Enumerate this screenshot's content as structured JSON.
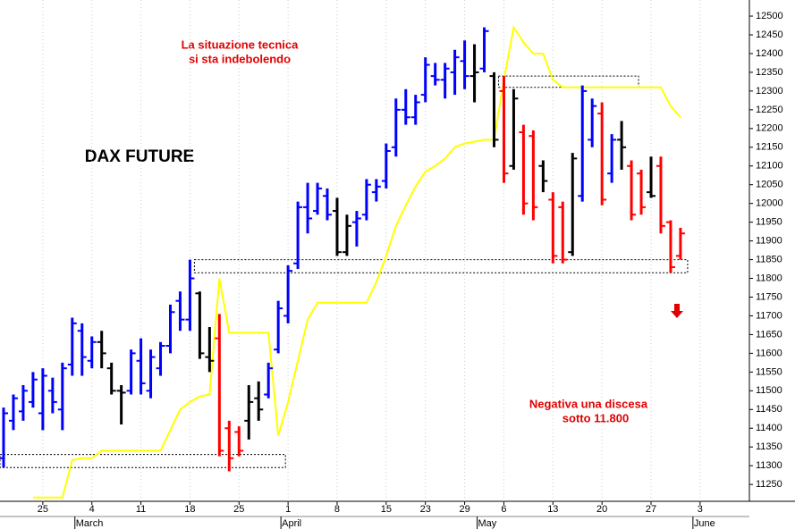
{
  "chart_data": {
    "type": "ohlc",
    "title": "DAX FUTURE",
    "annotations": [
      "La situazione tecnica",
      "si sta indebolendo",
      "Negativa una discesa",
      "sotto 11.800"
    ],
    "categories": [
      null,
      null,
      null,
      null,
      "25",
      null,
      null,
      null,
      null,
      "4",
      null,
      null,
      null,
      null,
      "11",
      null,
      null,
      null,
      null,
      "18",
      null,
      null,
      null,
      null,
      "25",
      null,
      null,
      null,
      null,
      "1",
      null,
      null,
      null,
      null,
      "8",
      null,
      null,
      null,
      null,
      "15",
      null,
      null,
      null,
      "23",
      null,
      null,
      null,
      "29",
      null,
      null,
      null,
      "6",
      null,
      null,
      null,
      null,
      "13",
      null,
      null,
      null,
      null,
      "20",
      null,
      null,
      null,
      null,
      "27",
      null,
      null,
      null,
      null,
      "3"
    ],
    "months": [
      {
        "value": 8,
        "label": "March"
      },
      {
        "value": 29,
        "label": "April"
      },
      {
        "value": 49,
        "label": "May"
      },
      {
        "value": 71,
        "label": "June"
      }
    ],
    "ohlc": {
      "open": [
        11320,
        11420,
        11445,
        11470,
        11440,
        11500,
        11450,
        11570,
        11660,
        11580,
        11630,
        11560,
        11500,
        11500,
        11580,
        11500,
        11560,
        11620,
        11740,
        11690,
        11760,
        11590,
        11640,
        11400,
        11390,
        11420,
        11480,
        11490,
        11610,
        11700,
        11840,
        11990,
        11980,
        12020,
        11980,
        11870,
        11950,
        11970,
        12030,
        12060,
        12150,
        12250,
        12230,
        12290,
        12340,
        12330,
        12350,
        12380,
        12340,
        12360,
        12340,
        12300,
        12100,
        12190,
        12180,
        12100,
        12010,
        11990,
        11870,
        12020,
        12170,
        12240,
        12080,
        12170,
        12100,
        12080,
        12030,
        12100,
        11950,
        11860,
        null,
        null
      ],
      "high": [
        11455,
        11490,
        11515,
        11550,
        11560,
        11535,
        11575,
        11695,
        11680,
        11645,
        11660,
        11575,
        11515,
        11610,
        11640,
        11610,
        11630,
        11730,
        11765,
        11850,
        11765,
        11670,
        11705,
        11420,
        11405,
        11515,
        11525,
        11575,
        11740,
        11835,
        12005,
        12055,
        12055,
        12040,
        12015,
        11970,
        11980,
        12065,
        12065,
        12160,
        12280,
        12305,
        12290,
        12390,
        12375,
        12375,
        12410,
        12435,
        12425,
        12470,
        12350,
        12340,
        12305,
        12210,
        12195,
        12115,
        12030,
        12005,
        12135,
        12315,
        12280,
        12270,
        12185,
        12220,
        12115,
        12090,
        12125,
        12125,
        11955,
        11935,
        null,
        null
      ],
      "low": [
        11295,
        11395,
        11420,
        11455,
        11395,
        11440,
        11395,
        11540,
        11540,
        11560,
        11560,
        11490,
        11410,
        11490,
        11490,
        11480,
        11540,
        11600,
        11660,
        11660,
        11585,
        11550,
        11325,
        11285,
        11325,
        11370,
        11420,
        11480,
        11600,
        11680,
        11825,
        11920,
        11970,
        11955,
        11860,
        11860,
        11885,
        11955,
        12005,
        12040,
        12125,
        12210,
        12210,
        12270,
        12315,
        12280,
        12290,
        12305,
        12270,
        12350,
        12150,
        12055,
        12090,
        11970,
        11955,
        12030,
        11840,
        11840,
        11860,
        12005,
        12150,
        11995,
        12055,
        12090,
        11955,
        11970,
        12015,
        11920,
        11815,
        11850,
        null,
        null
      ],
      "close": [
        11440,
        11480,
        11500,
        11530,
        11540,
        11470,
        11560,
        11680,
        11590,
        11630,
        11600,
        11500,
        11495,
        11600,
        11520,
        11590,
        11620,
        11710,
        11690,
        11800,
        11600,
        11580,
        11340,
        11320,
        11340,
        11470,
        11450,
        11560,
        11720,
        11820,
        11990,
        11960,
        12040,
        11970,
        11870,
        11940,
        11960,
        12050,
        12045,
        12140,
        12250,
        12230,
        12270,
        12370,
        12330,
        12360,
        12390,
        12340,
        12350,
        12460,
        12170,
        12080,
        12280,
        12000,
        11990,
        12060,
        11860,
        11850,
        12120,
        12300,
        12260,
        12010,
        12170,
        12150,
        11970,
        11990,
        12020,
        11940,
        11830,
        11920,
        null,
        null
      ],
      "colors": [
        "#0000ff",
        "#0000ff",
        "#0000ff",
        "#0000ff",
        "#0000ff",
        "#0000ff",
        "#0000ff",
        "#0000ff",
        "#0000ff",
        "#0000ff",
        "#000000",
        "#000000",
        "#000000",
        "#0000ff",
        "#0000ff",
        "#0000ff",
        "#0000ff",
        "#0000ff",
        "#0000ff",
        "#0000ff",
        "#000000",
        "#000000",
        "#ff0000",
        "#ff0000",
        "#ff0000",
        "#000000",
        "#000000",
        "#0000ff",
        "#0000ff",
        "#0000ff",
        "#0000ff",
        "#0000ff",
        "#0000ff",
        "#0000ff",
        "#000000",
        "#000000",
        "#0000ff",
        "#0000ff",
        "#0000ff",
        "#0000ff",
        "#0000ff",
        "#0000ff",
        "#0000ff",
        "#0000ff",
        "#0000ff",
        "#0000ff",
        "#0000ff",
        "#0000ff",
        "#000000",
        "#0000ff",
        "#000000",
        "#ff0000",
        "#000000",
        "#ff0000",
        "#ff0000",
        "#000000",
        "#ff0000",
        "#ff0000",
        "#000000",
        "#0000ff",
        "#0000ff",
        "#ff0000",
        "#0000ff",
        "#000000",
        "#ff0000",
        "#ff0000",
        "#000000",
        "#ff0000",
        "#ff0000",
        "#ff0000",
        null,
        null
      ]
    },
    "stop_line": {
      "color": "#ffff00",
      "values": [
        null,
        null,
        null,
        11215,
        11215,
        11215,
        11215,
        11315,
        11320,
        11320,
        11340,
        11340,
        11340,
        11340,
        11340,
        11340,
        11340,
        11395,
        11450,
        11470,
        11485,
        11490,
        11800,
        11655,
        11655,
        11655,
        11655,
        11655,
        11380,
        11470,
        11580,
        11690,
        11735,
        11735,
        11735,
        11735,
        11735,
        11735,
        11790,
        11860,
        11940,
        11995,
        12045,
        12085,
        12100,
        12120,
        12150,
        12160,
        12165,
        12170,
        12170,
        12330,
        12470,
        12430,
        12400,
        12400,
        12330,
        12310,
        12310,
        12310,
        12310,
        12310,
        12310,
        12310,
        12310,
        12310,
        12310,
        12310,
        12260,
        12230,
        null,
        null
      ]
    },
    "zones": [
      {
        "from": 11295,
        "to": 11330,
        "start": 0,
        "end": 28
      },
      {
        "from": 11815,
        "to": 11850,
        "start": 20,
        "end": 69
      },
      {
        "from": 12310,
        "to": 12340,
        "start": 51,
        "end": 64
      }
    ],
    "ylim": [
      11205,
      12543
    ],
    "yticks": [
      11250,
      11300,
      11350,
      11400,
      11450,
      11500,
      11550,
      11600,
      11650,
      11700,
      11750,
      11800,
      11850,
      11900,
      11950,
      12000,
      12050,
      12100,
      12150,
      12200,
      12250,
      12300,
      12350,
      12400,
      12450,
      12500
    ]
  }
}
